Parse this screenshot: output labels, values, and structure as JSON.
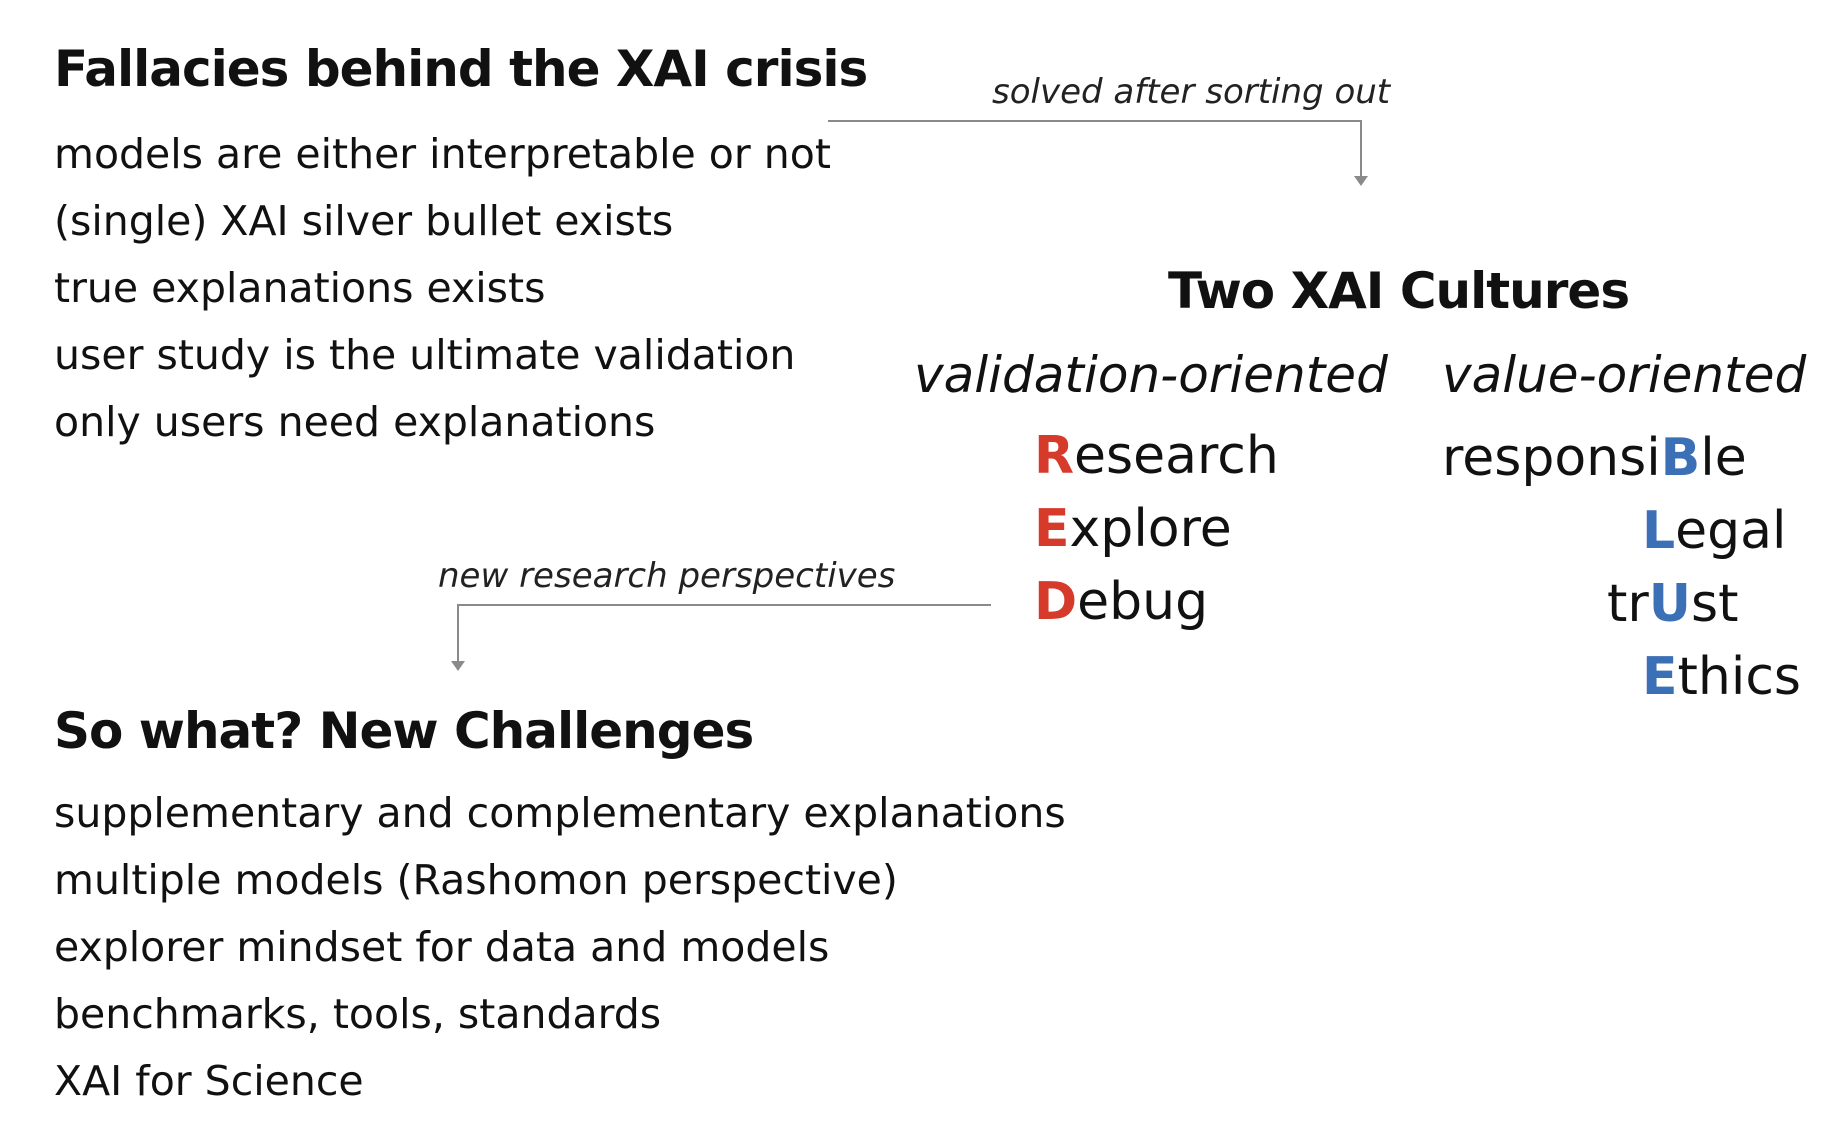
{
  "fallacies": {
    "title": "Fallacies behind the XAI crisis",
    "items": [
      "models are either interpretable or not",
      "(single) XAI silver bullet exists",
      "true explanations exists",
      "user study is  the ultimate validation",
      "only users need explanations"
    ]
  },
  "arrow_top_label": "solved after sorting out",
  "cultures": {
    "title": "Two XAI Cultures",
    "left": {
      "subtitle": "validation-oriented",
      "words": [
        {
          "pre": "",
          "hl": "R",
          "post": "esearch"
        },
        {
          "pre": "",
          "hl": "E",
          "post": "xplore"
        },
        {
          "pre": "",
          "hl": "D",
          "post": "ebug"
        }
      ]
    },
    "right": {
      "subtitle": "value-oriented",
      "words": [
        {
          "pre": "responsi",
          "hl": "B",
          "post": "le"
        },
        {
          "pre": "",
          "hl": "L",
          "post": "egal"
        },
        {
          "pre": "tr",
          "hl": "U",
          "post": "st"
        },
        {
          "pre": "",
          "hl": "E",
          "post": "thics"
        }
      ]
    },
    "colors": {
      "left_highlight": "#d63a2a",
      "right_highlight": "#3b6fb6"
    }
  },
  "arrow_bottom_label": "new research perspectives",
  "challenges": {
    "title": "So what? New Challenges",
    "items": [
      "supplementary and complementary explanations",
      "multiple models (Rashomon perspective)",
      "explorer mindset for data and models",
      "benchmarks, tools, standards",
      "XAI for Science"
    ]
  }
}
